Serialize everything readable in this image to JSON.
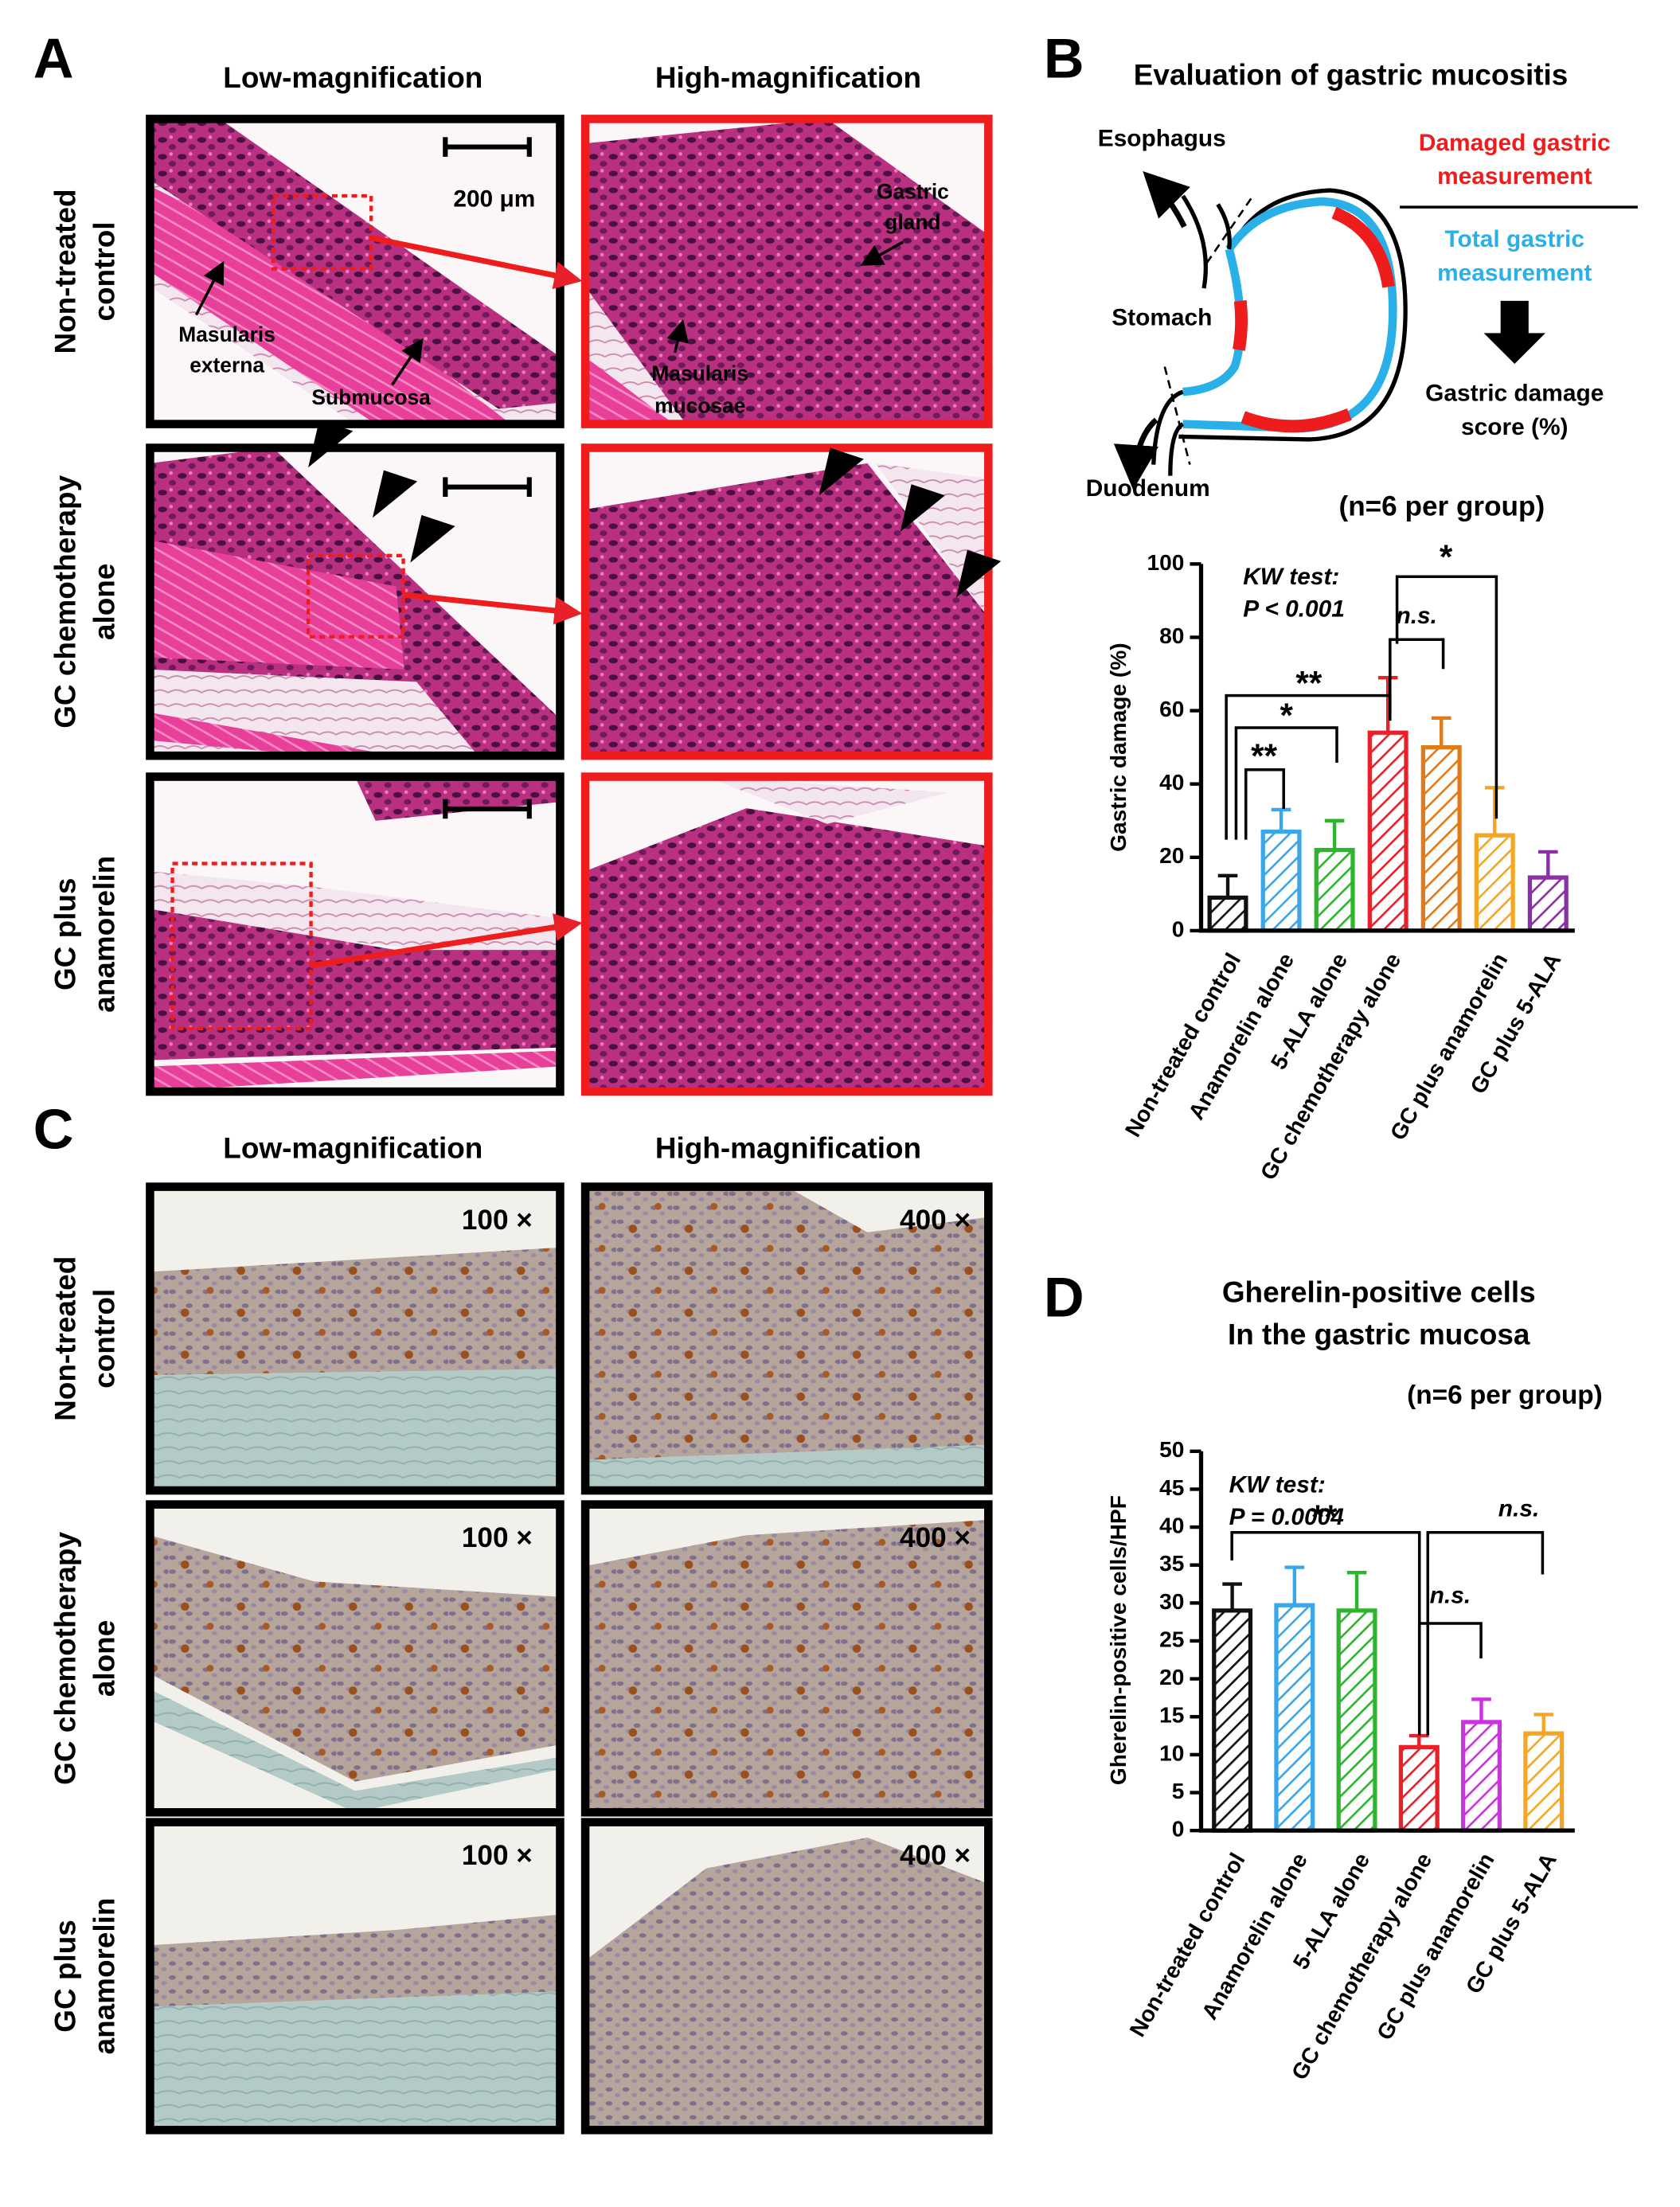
{
  "panels": {
    "A": {
      "letter": "A",
      "headers": [
        "Low-magnification",
        "High-magnification"
      ],
      "rows": [
        [
          "Non-treated",
          "control"
        ],
        [
          "GC chemotherapy",
          "alone"
        ],
        [
          "GC plus",
          "anamorelin"
        ]
      ],
      "annotations": {
        "scale": "200 μm",
        "masularis_externa": [
          "Masularis",
          "externa"
        ],
        "submucosa": "Submucosa",
        "gastric_gland": [
          "Gastric",
          "gland"
        ],
        "masularis_mucosae": [
          "Masularis",
          "mucosae"
        ]
      }
    },
    "B": {
      "letter": "B",
      "diagram": {
        "esophagus": "Esophagus",
        "stomach": "Stomach",
        "duodenum": "Duodenum",
        "numerator": [
          "Damaged gastric",
          "measurement"
        ],
        "denominator": [
          "Total gastric",
          "measurement"
        ],
        "result": [
          "Gastric damage",
          "score (%)"
        ]
      }
    },
    "C": {
      "letter": "C",
      "headers": [
        "Low-magnification",
        "High-magnification"
      ],
      "rows": [
        [
          "Non-treated",
          "control"
        ],
        [
          "GC chemotherapy",
          "alone"
        ],
        [
          "GC plus",
          "anamorelin"
        ]
      ],
      "magnifications": [
        [
          "100 ×",
          "400 ×"
        ],
        [
          "100 ×",
          "400 ×"
        ],
        [
          "100 ×",
          "400 ×"
        ]
      ]
    },
    "D": {
      "letter": "D"
    }
  },
  "chart_data": [
    {
      "type": "bar",
      "title": "Evaluation of gastric mucositis",
      "subtitle": "(n=6 per group)",
      "y_label": "Gastric damage (%)",
      "categories": [
        "Non-treated control",
        "Anamorelin  alone",
        "5-ALA alone",
        "GC chemotherapy alone",
        null,
        "GC plus anamorelin",
        "GC plus 5-ALA"
      ],
      "values": [
        9,
        27,
        22,
        54,
        50,
        26,
        14.5
      ],
      "errors": [
        6,
        6,
        8,
        15,
        8,
        13,
        7
      ],
      "colors": [
        "#111111",
        "#3ba6e8",
        "#2db52d",
        "#e8202a",
        "#e07b1a",
        "#f5a623",
        "#8a2fa8"
      ],
      "ylim": [
        0,
        100
      ],
      "yticks": [
        0,
        20,
        40,
        60,
        80,
        100
      ],
      "test": [
        "KW test:",
        "P < 0.001"
      ],
      "significance": [
        "**",
        "*",
        "**",
        "n.s.",
        "*"
      ]
    },
    {
      "type": "bar",
      "title": "Gherelin-positive cells",
      "subtitle": "In the gastric mucosa",
      "note": "(n=6 per group)",
      "y_label": "Gherelin-positive cells/HPF",
      "categories": [
        "Non-treated control",
        "Anamorelin  alone",
        "5-ALA alone",
        "GC chemotherapy alone",
        "GC plus anamorelin",
        "GC plus 5-ALA"
      ],
      "values": [
        29,
        29.7,
        29,
        11,
        14.3,
        12.8
      ],
      "errors": [
        3.5,
        5,
        5,
        1.5,
        3,
        2.5
      ],
      "colors": [
        "#111111",
        "#3ba6e8",
        "#2db52d",
        "#e8202a",
        "#cc33e0",
        "#f5a623"
      ],
      "ylim": [
        0,
        50
      ],
      "yticks": [
        0,
        5,
        10,
        15,
        20,
        25,
        30,
        35,
        40,
        45,
        50
      ],
      "test": [
        "KW test:",
        "P = 0.0004"
      ],
      "significance": [
        "**",
        "n.s.",
        "n.s."
      ]
    }
  ]
}
